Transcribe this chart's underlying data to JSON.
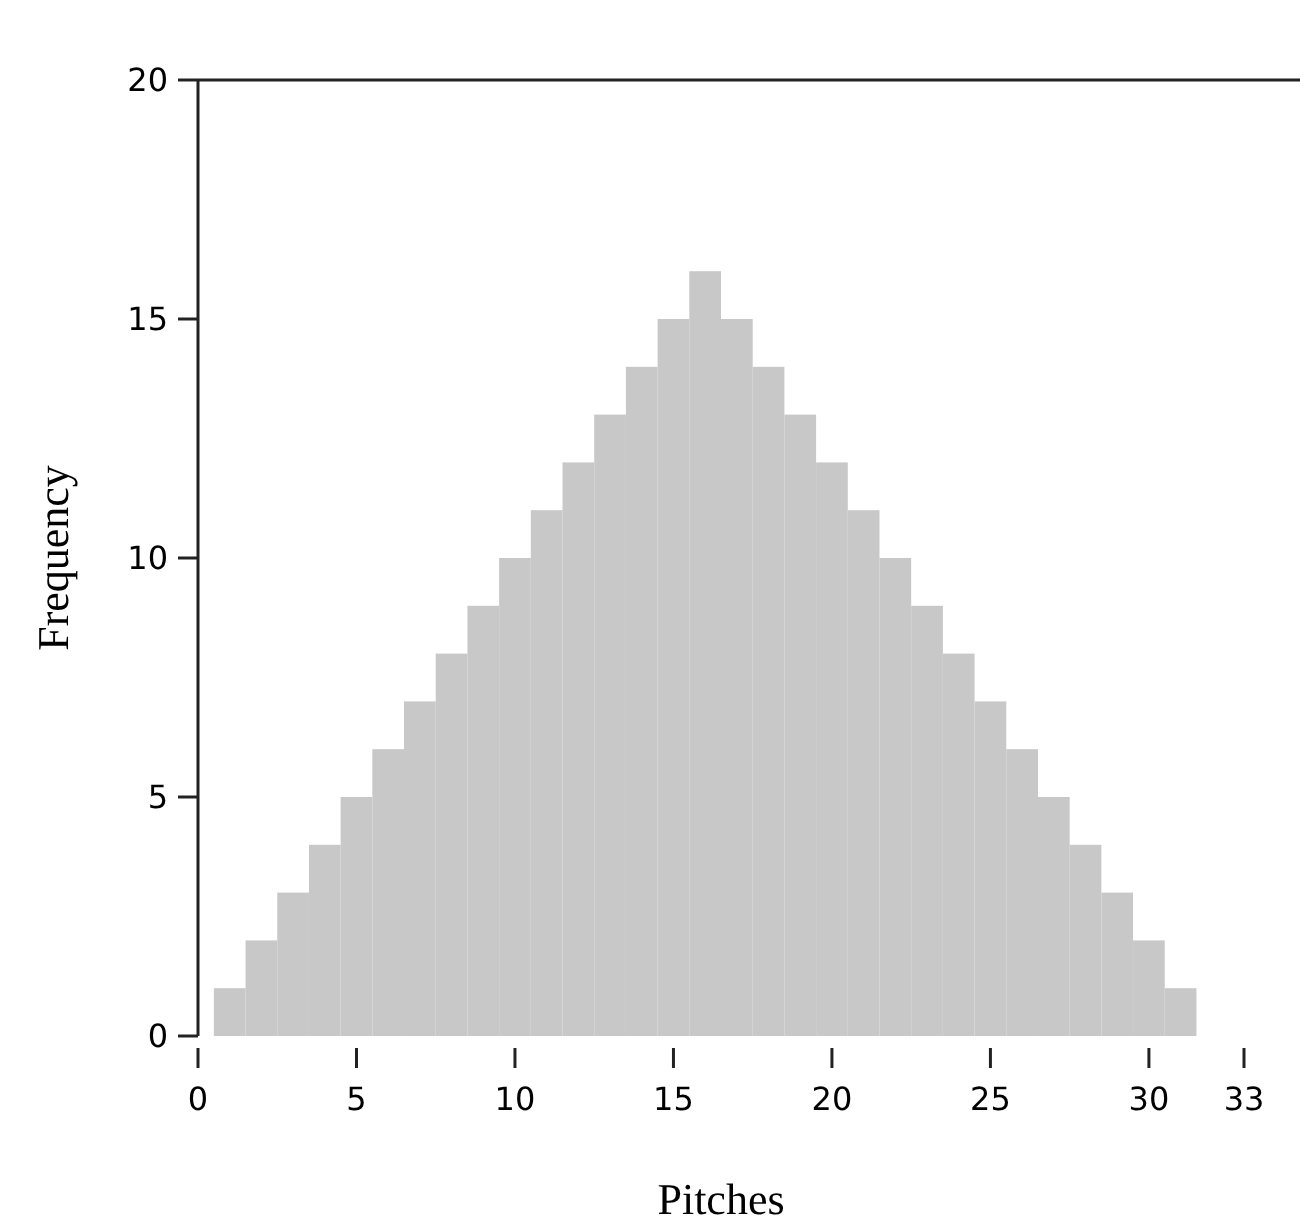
{
  "chart_data": {
    "type": "histogram",
    "xlabel": "Pitches",
    "ylabel": "Frequency",
    "bins": [
      0.5,
      1.5,
      2.5,
      3.5,
      4.5,
      5.5,
      6.5,
      7.5,
      8.5,
      9.5,
      10.5,
      11.5,
      12.5,
      13.5,
      14.5,
      15.5,
      16.5,
      17.5,
      18.5,
      19.5,
      20.5,
      21.5,
      22.5,
      23.5,
      24.5,
      25.5,
      26.5,
      27.5,
      28.5,
      29.5,
      30.5,
      31.5
    ],
    "values": [
      1,
      2,
      3,
      4,
      5,
      6,
      7,
      8,
      9,
      10,
      11,
      12,
      13,
      14,
      15,
      16,
      15,
      14,
      13,
      12,
      11,
      10,
      9,
      8,
      7,
      6,
      5,
      4,
      3,
      2,
      1
    ],
    "color": "#c8c8c8",
    "xlim": [
      0,
      33
    ],
    "xticks": [
      0,
      5,
      10,
      15,
      20,
      25,
      30,
      33
    ],
    "ylim": [
      0,
      20
    ],
    "yticks": [
      0,
      5,
      10,
      15,
      20
    ],
    "grid": false
  }
}
